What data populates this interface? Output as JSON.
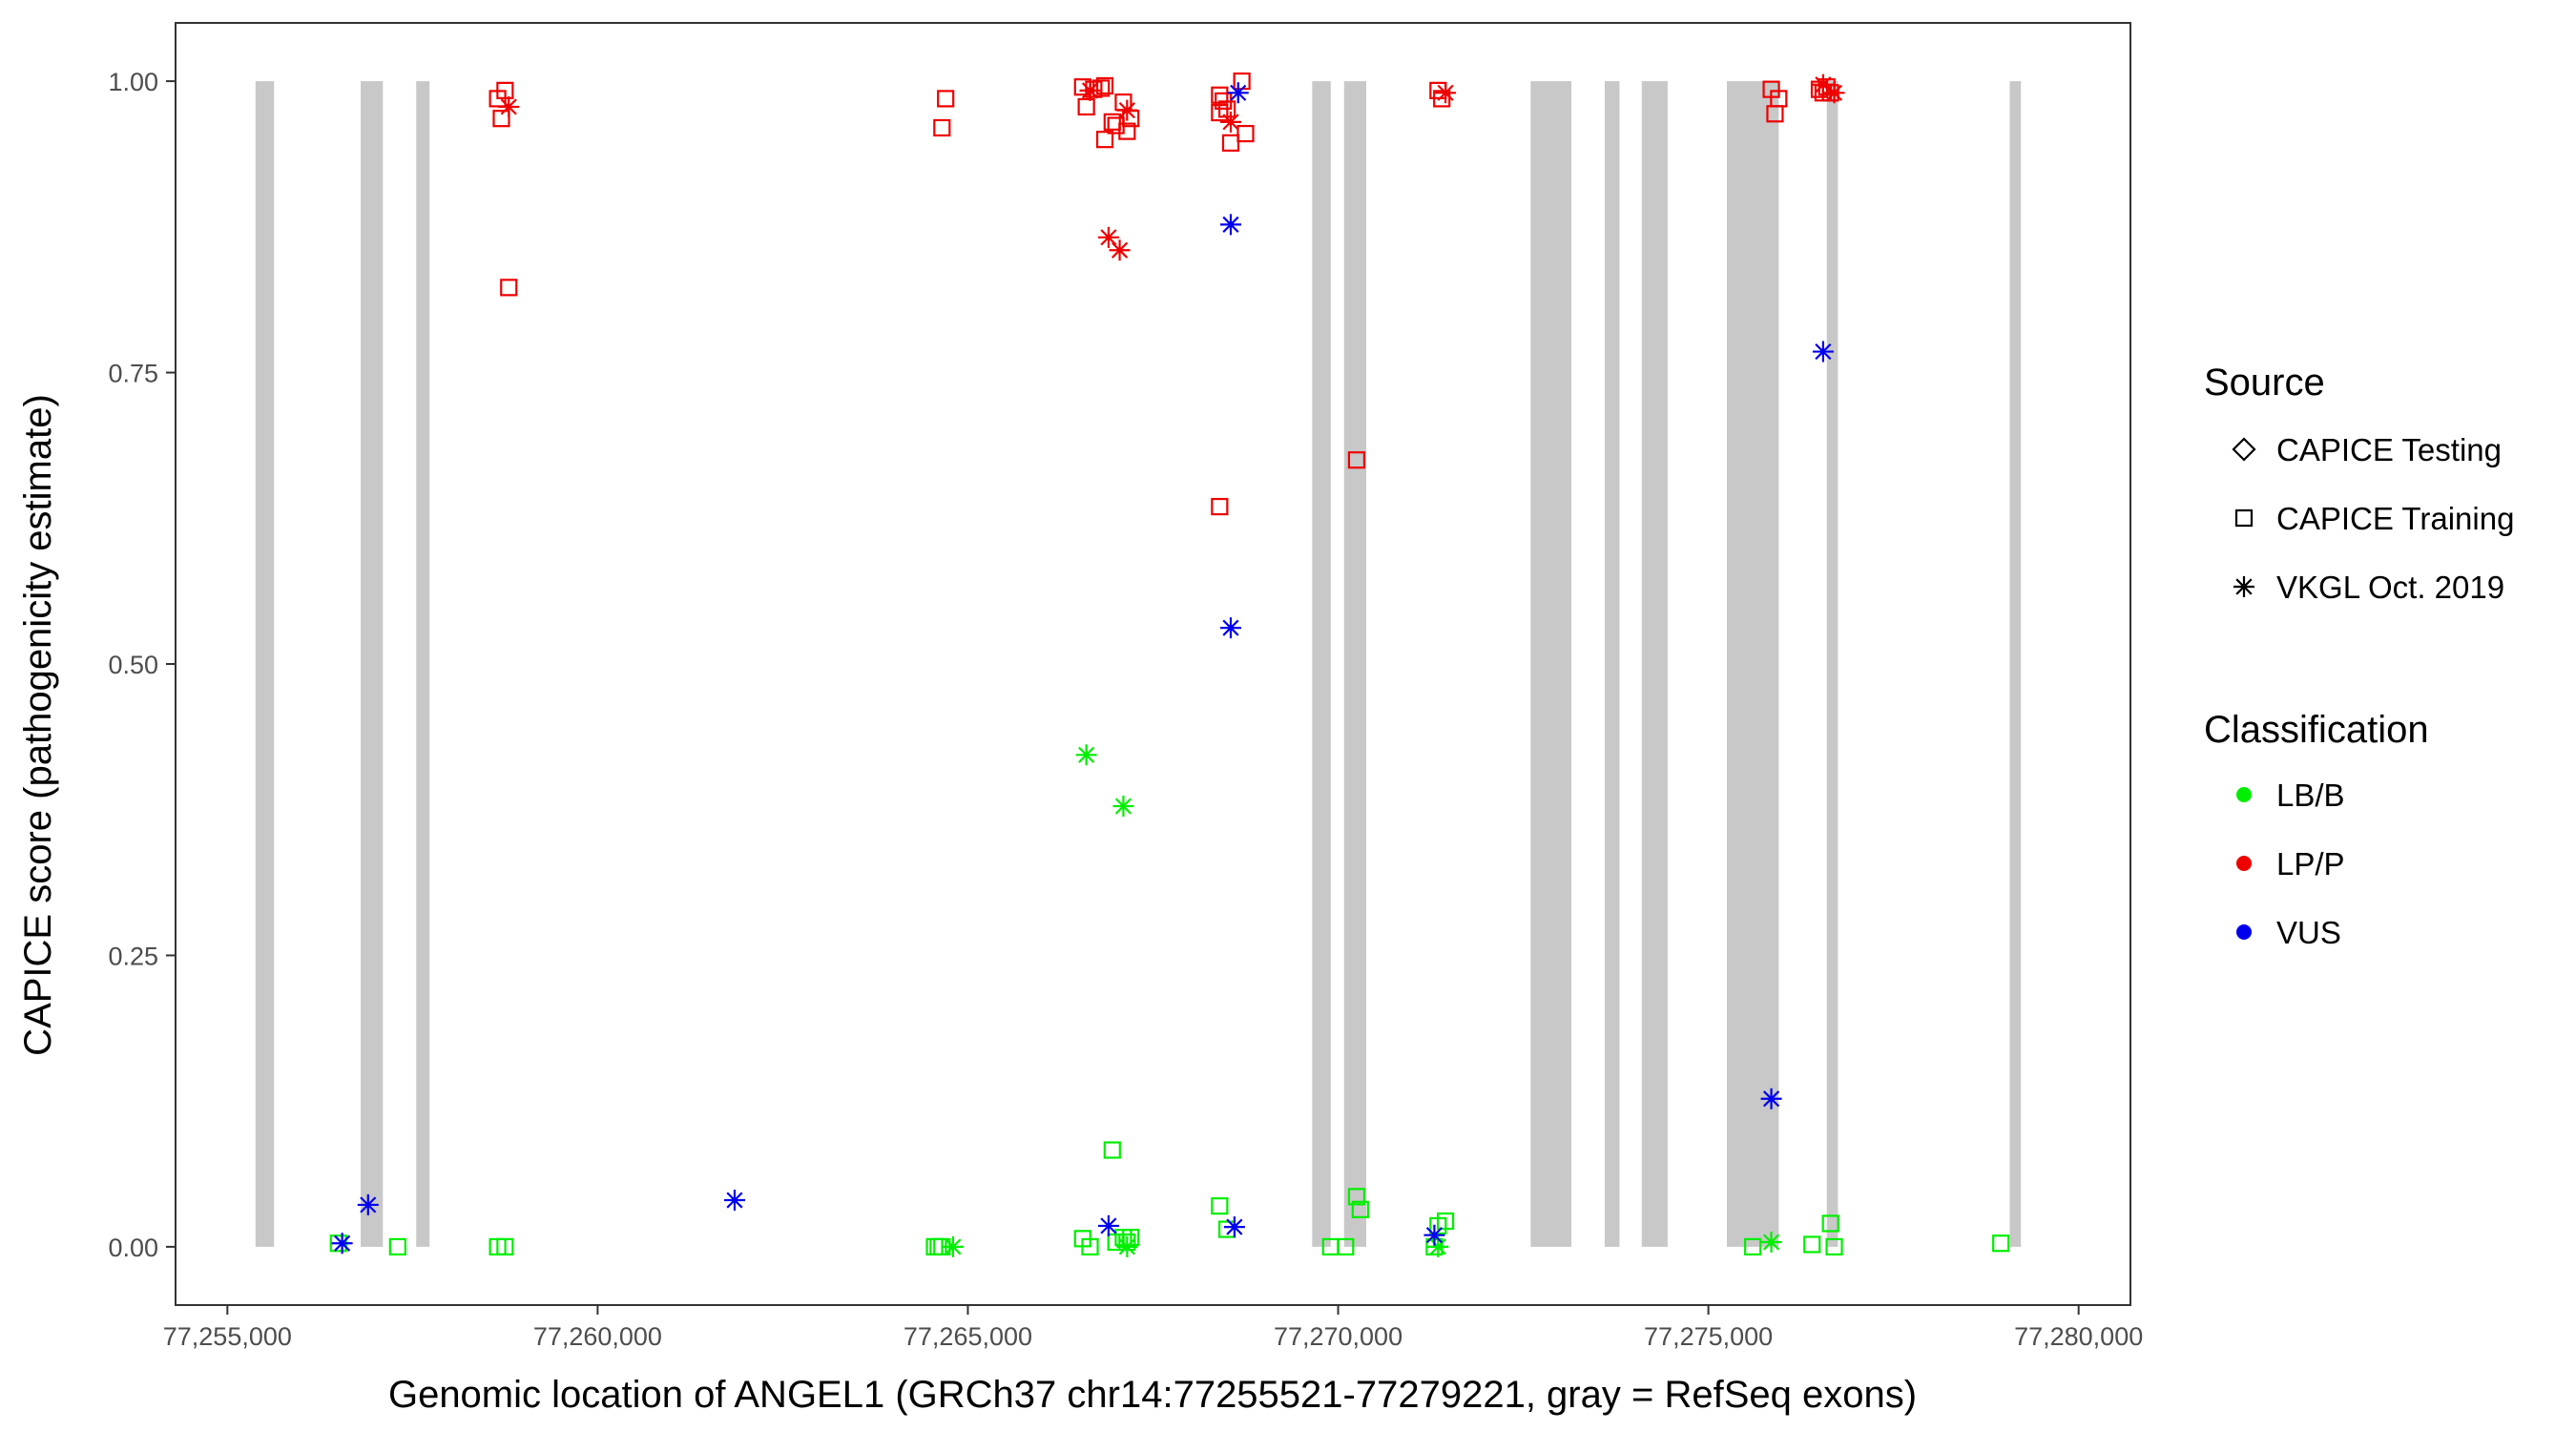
{
  "chart_data": {
    "type": "scatter",
    "xlabel": "Genomic location of ANGEL1 (GRCh37 chr14:77255521-77279221, gray = RefSeq exons)",
    "ylabel": "CAPICE score (pathogenicity estimate)",
    "xlim": [
      77254300,
      77280700
    ],
    "ylim": [
      -0.05,
      1.05
    ],
    "x_ticks": [
      77255000,
      77260000,
      77265000,
      77270000,
      77275000,
      77280000
    ],
    "x_tick_labels": [
      "77,255,000",
      "77,260,000",
      "77,265,000",
      "77,270,000",
      "77,275,000",
      "77,280,000"
    ],
    "y_ticks": [
      0,
      0.25,
      0.5,
      0.75,
      1
    ],
    "y_tick_labels": [
      "0.00",
      "0.25",
      "0.50",
      "0.75",
      "1.00"
    ],
    "grid": false,
    "exons": [
      [
        77255380,
        77255630
      ],
      [
        77256800,
        77257100
      ],
      [
        77257550,
        77257730
      ],
      [
        77269650,
        77269900
      ],
      [
        77270080,
        77270380
      ],
      [
        77272600,
        77273150
      ],
      [
        77273600,
        77273800
      ],
      [
        77274100,
        77274450
      ],
      [
        77275250,
        77275950
      ],
      [
        77276600,
        77276750
      ],
      [
        77279070,
        77279221
      ]
    ],
    "legend": {
      "position": "right",
      "source_title": "Source",
      "source_items": [
        {
          "label": "CAPICE Testing",
          "shape": "diamond"
        },
        {
          "label": "CAPICE Training",
          "shape": "square"
        },
        {
          "label": "VKGL Oct. 2019",
          "shape": "asterisk"
        }
      ],
      "class_title": "Classification",
      "class_items": [
        {
          "label": "LB/B",
          "color": "#00ee00"
        },
        {
          "label": "LP/P",
          "color": "#ee0000"
        },
        {
          "label": "VUS",
          "color": "#0000ee"
        }
      ]
    },
    "series": [
      {
        "name": "CAPICE Training",
        "shape": "square",
        "class": "LP/P",
        "color": "#ee0000",
        "points": [
          [
            77258650,
            0.985
          ],
          [
            77258750,
            0.992
          ],
          [
            77258700,
            0.968
          ],
          [
            77258800,
            0.823
          ],
          [
            77264700,
            0.985
          ],
          [
            77264650,
            0.96
          ],
          [
            77266550,
            0.995
          ],
          [
            77266600,
            0.978
          ],
          [
            77266700,
            0.993
          ],
          [
            77266850,
            0.996
          ],
          [
            77266800,
            0.994
          ],
          [
            77266950,
            0.965
          ],
          [
            77266850,
            0.95
          ],
          [
            77267000,
            0.962
          ],
          [
            77267100,
            0.982
          ],
          [
            77267150,
            0.957
          ],
          [
            77267200,
            0.968
          ],
          [
            77268400,
            0.988
          ],
          [
            77268450,
            0.983
          ],
          [
            77268400,
            0.973
          ],
          [
            77268500,
            0.976
          ],
          [
            77268550,
            0.947
          ],
          [
            77268700,
            1.0
          ],
          [
            77268750,
            0.955
          ],
          [
            77268400,
            0.635
          ],
          [
            77270250,
            0.675
          ],
          [
            77271350,
            0.992
          ],
          [
            77271400,
            0.985
          ],
          [
            77275850,
            0.993
          ],
          [
            77275950,
            0.985
          ],
          [
            77275900,
            0.972
          ],
          [
            77276500,
            0.993
          ],
          [
            77276550,
            0.99
          ],
          [
            77276600,
            0.995
          ],
          [
            77276650,
            0.99
          ]
        ]
      },
      {
        "name": "VKGL Oct. 2019",
        "shape": "asterisk",
        "class": "LP/P",
        "color": "#ee0000",
        "points": [
          [
            77258800,
            0.978
          ],
          [
            77266650,
            0.992
          ],
          [
            77266900,
            0.866
          ],
          [
            77267050,
            0.855
          ],
          [
            77267150,
            0.975
          ],
          [
            77268550,
            0.965
          ],
          [
            77271450,
            0.99
          ],
          [
            77276550,
            0.997
          ],
          [
            77276700,
            0.99
          ]
        ]
      },
      {
        "name": "CAPICE Training",
        "shape": "square",
        "class": "LB/B",
        "color": "#00ee00",
        "points": [
          [
            77256500,
            0.003
          ],
          [
            77257300,
            0.0
          ],
          [
            77258650,
            0.0
          ],
          [
            77258750,
            0.0
          ],
          [
            77264550,
            0.0
          ],
          [
            77264600,
            0.0
          ],
          [
            77264650,
            0.0
          ],
          [
            77266550,
            0.007
          ],
          [
            77266650,
            0.0
          ],
          [
            77266950,
            0.083
          ],
          [
            77267000,
            0.004
          ],
          [
            77267100,
            0.008
          ],
          [
            77267150,
            0.004
          ],
          [
            77267200,
            0.008
          ],
          [
            77268400,
            0.035
          ],
          [
            77268500,
            0.015
          ],
          [
            77269900,
            0.0
          ],
          [
            77270100,
            0.0
          ],
          [
            77270250,
            0.043
          ],
          [
            77270300,
            0.032
          ],
          [
            77271300,
            0.0
          ],
          [
            77271350,
            0.018
          ],
          [
            77271450,
            0.022
          ],
          [
            77275600,
            0.0
          ],
          [
            77276400,
            0.002
          ],
          [
            77276650,
            0.02
          ],
          [
            77276700,
            0.0
          ],
          [
            77278950,
            0.003
          ]
        ]
      },
      {
        "name": "VKGL Oct. 2019",
        "shape": "asterisk",
        "class": "LB/B",
        "color": "#00ee00",
        "points": [
          [
            77266600,
            0.422
          ],
          [
            77267100,
            0.378
          ],
          [
            77264800,
            0.0
          ],
          [
            77267150,
            0.0
          ],
          [
            77275850,
            0.004
          ],
          [
            77271350,
            0.0
          ]
        ]
      },
      {
        "name": "VKGL Oct. 2019",
        "shape": "asterisk",
        "class": "VUS",
        "color": "#0000ee",
        "points": [
          [
            77256550,
            0.003
          ],
          [
            77256900,
            0.036
          ],
          [
            77261850,
            0.04
          ],
          [
            77266900,
            0.018
          ],
          [
            77268550,
            0.877
          ],
          [
            77268550,
            0.531
          ],
          [
            77268650,
            0.99
          ],
          [
            77268600,
            0.017
          ],
          [
            77271300,
            0.01
          ],
          [
            77275850,
            0.127
          ],
          [
            77276550,
            0.768
          ]
        ]
      }
    ]
  }
}
